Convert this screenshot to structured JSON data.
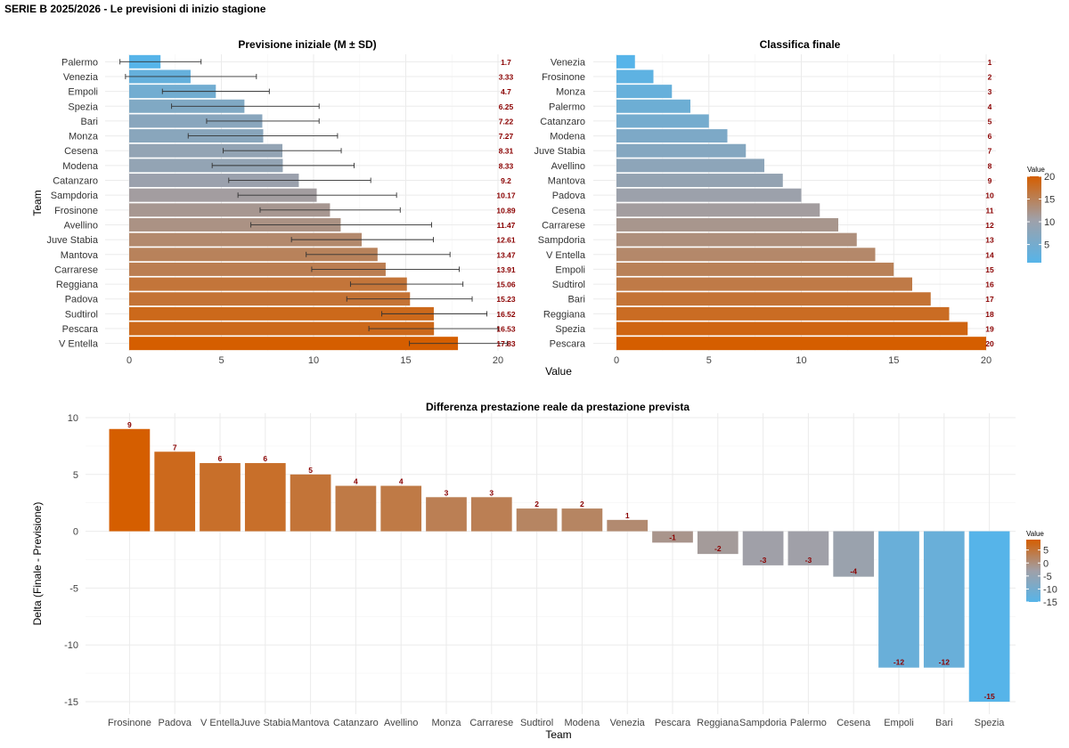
{
  "page_title": "SERIE B 2025/2026 - Le previsioni di inizio stagione",
  "colors": {
    "low": "#56B4E9",
    "mid": "#A0A0A8",
    "high": "#D55E00",
    "label": "#8B0000"
  },
  "chart_data": [
    {
      "type": "bar",
      "orientation": "horizontal",
      "title": "Previsione iniziale (M ± SD)",
      "xlabel": "Value",
      "ylabel": "Team",
      "xlim": [
        0,
        20
      ],
      "xticks": [
        0,
        5,
        10,
        15,
        20
      ],
      "categories": [
        "Palermo",
        "Venezia",
        "Empoli",
        "Spezia",
        "Bari",
        "Monza",
        "Cesena",
        "Modena",
        "Catanzaro",
        "Sampdoria",
        "Frosinone",
        "Avellino",
        "Juve Stabia",
        "Mantova",
        "Carrarese",
        "Reggiana",
        "Padova",
        "Sudtirol",
        "Pescara",
        "V Entella"
      ],
      "values": [
        1.7,
        3.33,
        4.7,
        6.25,
        7.22,
        7.27,
        8.31,
        8.33,
        9.2,
        10.17,
        10.89,
        11.47,
        12.61,
        13.47,
        13.91,
        15.06,
        15.23,
        16.52,
        16.53,
        17.83
      ],
      "value_labels": [
        "1.7",
        "3.33",
        "4.7",
        "6.25",
        "7.22",
        "7.27",
        "8.31",
        "8.33",
        "9.2",
        "10.17",
        "10.89",
        "11.47",
        "12.61",
        "13.47",
        "13.91",
        "15.06",
        "15.23",
        "16.52",
        "16.53",
        "17.83"
      ],
      "error_low": [
        -0.5,
        -0.2,
        1.8,
        2.3,
        4.2,
        3.2,
        5.1,
        4.5,
        5.4,
        5.9,
        7.1,
        6.6,
        8.8,
        9.6,
        9.9,
        12.0,
        11.8,
        13.7,
        13.0,
        15.2
      ],
      "error_high": [
        3.9,
        6.9,
        7.6,
        10.3,
        10.3,
        11.3,
        11.5,
        12.2,
        13.1,
        14.5,
        14.7,
        16.4,
        16.5,
        17.4,
        17.9,
        18.1,
        18.6,
        19.4,
        20.0,
        20.5
      ]
    },
    {
      "type": "bar",
      "orientation": "horizontal",
      "title": "Classifica finale",
      "xlabel": "",
      "ylabel": "",
      "xlim": [
        0,
        20
      ],
      "xticks": [
        0,
        5,
        10,
        15,
        20
      ],
      "categories": [
        "Venezia",
        "Frosinone",
        "Monza",
        "Palermo",
        "Catanzaro",
        "Modena",
        "Juve Stabia",
        "Avellino",
        "Mantova",
        "Padova",
        "Cesena",
        "Carrarese",
        "Sampdoria",
        "V Entella",
        "Empoli",
        "Sudtirol",
        "Bari",
        "Reggiana",
        "Spezia",
        "Pescara"
      ],
      "values": [
        1,
        2,
        3,
        4,
        5,
        6,
        7,
        8,
        9,
        10,
        11,
        12,
        13,
        14,
        15,
        16,
        17,
        18,
        19,
        20
      ],
      "value_labels": [
        "1",
        "2",
        "3",
        "4",
        "5",
        "6",
        "7",
        "8",
        "9",
        "10",
        "11",
        "12",
        "13",
        "14",
        "15",
        "16",
        "17",
        "18",
        "19",
        "20"
      ],
      "legend": {
        "title": "Value",
        "ticks": [
          "20",
          "15",
          "10",
          "5"
        ],
        "range": [
          1,
          20
        ]
      }
    },
    {
      "type": "bar",
      "orientation": "vertical",
      "title": "Differenza prestazione reale da prestazione prevista",
      "xlabel": "Team",
      "ylabel": "Delta (Finale - Previsione)",
      "ylim": [
        -15,
        10
      ],
      "yticks": [
        "10",
        "5",
        "0",
        "-5",
        "-10",
        "-15"
      ],
      "categories": [
        "Frosinone",
        "Padova",
        "V Entella",
        "Juve Stabia",
        "Mantova",
        "Catanzaro",
        "Avellino",
        "Monza",
        "Carrarese",
        "Sudtirol",
        "Modena",
        "Venezia",
        "Pescara",
        "Reggiana",
        "Sampdoria",
        "Palermo",
        "Cesena",
        "Empoli",
        "Bari",
        "Spezia"
      ],
      "values": [
        9,
        7,
        6,
        6,
        5,
        4,
        4,
        3,
        3,
        2,
        2,
        1,
        -1,
        -2,
        -3,
        -3,
        -4,
        -12,
        -12,
        -15
      ],
      "value_labels": [
        "9",
        "7",
        "6",
        "6",
        "5",
        "4",
        "4",
        "3",
        "3",
        "2",
        "2",
        "1",
        "-1",
        "-2",
        "-3",
        "-3",
        "-4",
        "-12",
        "-12",
        "-15"
      ],
      "legend": {
        "title": "Value",
        "ticks": [
          "5",
          "0",
          "-5",
          "-10",
          "-15"
        ],
        "range": [
          -15,
          9
        ]
      }
    }
  ]
}
